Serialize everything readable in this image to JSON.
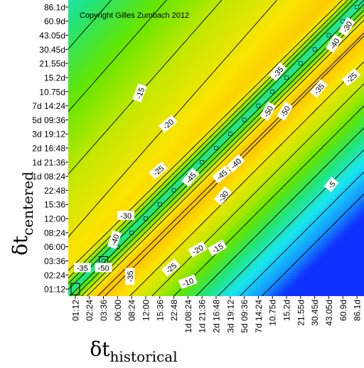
{
  "chart_data": {
    "type": "heatmap",
    "annotation": "Copyright Gilles Zumbach 2012",
    "xlabel": {
      "symbol": "δt",
      "subscript": "historical"
    },
    "ylabel": {
      "symbol": "δt",
      "subscript": "centered"
    },
    "categories": [
      "01:12",
      "02:24",
      "03:36",
      "06:00",
      "08:24",
      "12:00",
      "15:36",
      "22:48",
      "1d 08:24",
      "1d 21:36",
      "2d 16:48",
      "3d 19:12",
      "5d 09:36",
      "7d 14:24",
      "10.75d",
      "15.2d",
      "21.55d",
      "30.45d",
      "43.05d",
      "60.9d",
      "86.1d"
    ],
    "colorscale": {
      "min": -55,
      "max": 0,
      "colors": [
        "#1030ff",
        "#14a0ff",
        "#19e6f0",
        "#22e47a",
        "#64e600",
        "#c4e800",
        "#fae400",
        "#ffb000",
        "#ff6a00",
        "#ff1a00"
      ]
    },
    "contour_labels": [
      {
        "text": "-30",
        "x": 19.3,
        "y": 18.6,
        "angle": -58
      },
      {
        "text": "-40",
        "x": 18.4,
        "y": 17.4,
        "angle": -58
      },
      {
        "text": "-25",
        "x": 19.6,
        "y": 15.0,
        "angle": -40
      },
      {
        "text": "-35",
        "x": 14.4,
        "y": 15.4,
        "angle": -50
      },
      {
        "text": "-35",
        "x": 17.3,
        "y": 14.2,
        "angle": -50
      },
      {
        "text": "-50",
        "x": 13.7,
        "y": 12.6,
        "angle": -60
      },
      {
        "text": "-50",
        "x": 14.9,
        "y": 12.6,
        "angle": -60
      },
      {
        "text": "-15",
        "x": 4.6,
        "y": 13.9,
        "angle": -70
      },
      {
        "text": "-20",
        "x": 6.6,
        "y": 11.7,
        "angle": -40
      },
      {
        "text": "-25",
        "x": 5.9,
        "y": 8.4,
        "angle": -40
      },
      {
        "text": "-45",
        "x": 8.2,
        "y": 7.9,
        "angle": -50
      },
      {
        "text": "-45",
        "x": 10.4,
        "y": 8.1,
        "angle": -40
      },
      {
        "text": "-40",
        "x": 11.4,
        "y": 8.9,
        "angle": -45
      },
      {
        "text": "-30",
        "x": 10.5,
        "y": 6.6,
        "angle": -50
      },
      {
        "text": "-5",
        "x": 18.2,
        "y": 7.4,
        "angle": -50
      },
      {
        "text": "-30",
        "x": 3.6,
        "y": 5.2,
        "angle": 0
      },
      {
        "text": "-40",
        "x": 2.8,
        "y": 3.5,
        "angle": -70
      },
      {
        "text": "-20",
        "x": 8.7,
        "y": 2.8,
        "angle": -30
      },
      {
        "text": "-15",
        "x": 10.1,
        "y": 2.9,
        "angle": -30
      },
      {
        "text": "-25",
        "x": 6.8,
        "y": 1.5,
        "angle": -40
      },
      {
        "text": "-35",
        "x": 0.5,
        "y": 1.5,
        "angle": 0
      },
      {
        "text": "-50",
        "x": 2.0,
        "y": 1.5,
        "angle": 0
      },
      {
        "text": "-35",
        "x": 3.9,
        "y": 0.9,
        "angle": -90
      },
      {
        "text": "-10",
        "x": 8.0,
        "y": 0.5,
        "angle": -20
      }
    ]
  }
}
